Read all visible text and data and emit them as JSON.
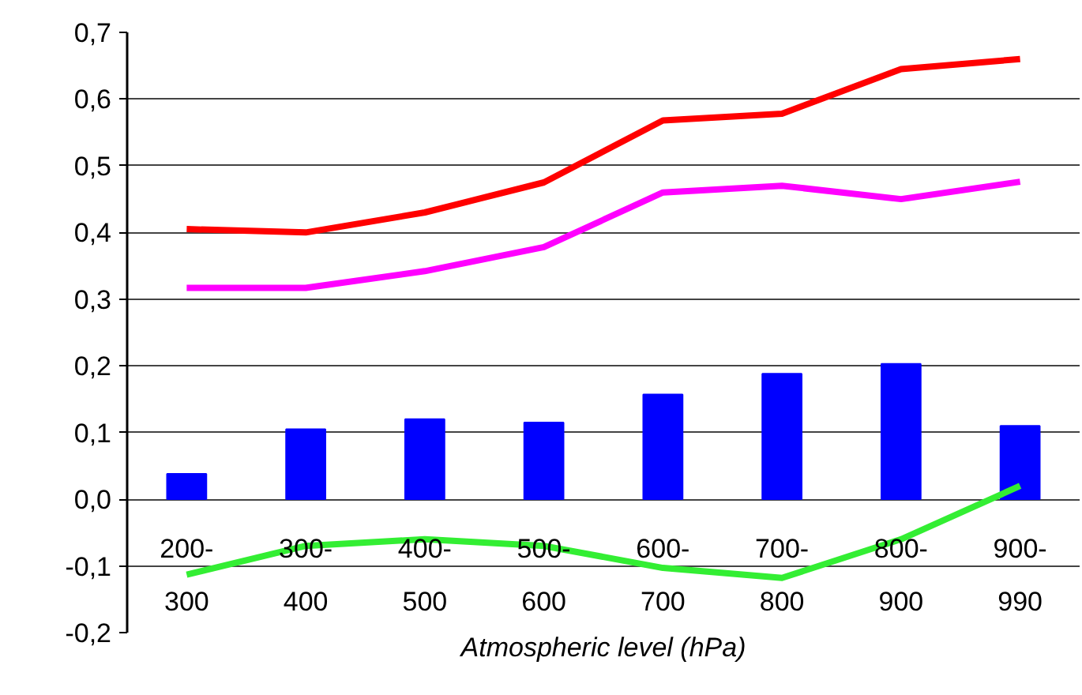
{
  "chart_data": {
    "type": "bar",
    "xlabel": "Atmospheric level (hPa)",
    "categories": [
      "200-300",
      "300-400",
      "400-500",
      "500-600",
      "600-700",
      "700-800",
      "800-900",
      "900-990"
    ],
    "series": [
      {
        "color": "#0000ff",
        "values": [
          0.038,
          0.105,
          0.12,
          0.115,
          0.157,
          0.188,
          0.203,
          0.11
        ]
      },
      {
        "type": "line",
        "color": "#ff0000",
        "values": [
          0.405,
          0.4,
          0.43,
          0.475,
          0.568,
          0.578,
          0.645,
          0.66
        ]
      },
      {
        "type": "line",
        "color": "#ff00ff",
        "values": [
          0.317,
          0.317,
          0.342,
          0.378,
          0.46,
          0.47,
          0.45,
          0.476
        ]
      },
      {
        "type": "line",
        "color": "#33ee33",
        "values": [
          -0.113,
          -0.07,
          -0.06,
          -0.07,
          -0.103,
          -0.118,
          -0.06,
          0.02
        ]
      }
    ],
    "ylim": [
      -0.2,
      0.7
    ],
    "yticks": [
      {
        "value": -0.2,
        "label": "-0,2"
      },
      {
        "value": -0.1,
        "label": "-0,1"
      },
      {
        "value": 0,
        "label": "0,0"
      },
      {
        "value": 0.1,
        "label": "0,1"
      },
      {
        "value": 0.2,
        "label": "0,2"
      },
      {
        "value": 0.3,
        "label": "0,3"
      },
      {
        "value": 0.4,
        "label": "0,4"
      },
      {
        "value": 0.5,
        "label": "0,5"
      },
      {
        "value": 0.6,
        "label": "0,6"
      },
      {
        "value": 0.7,
        "label": "0,7"
      }
    ],
    "grid": "y",
    "marker": "none",
    "line_style": "solid"
  }
}
